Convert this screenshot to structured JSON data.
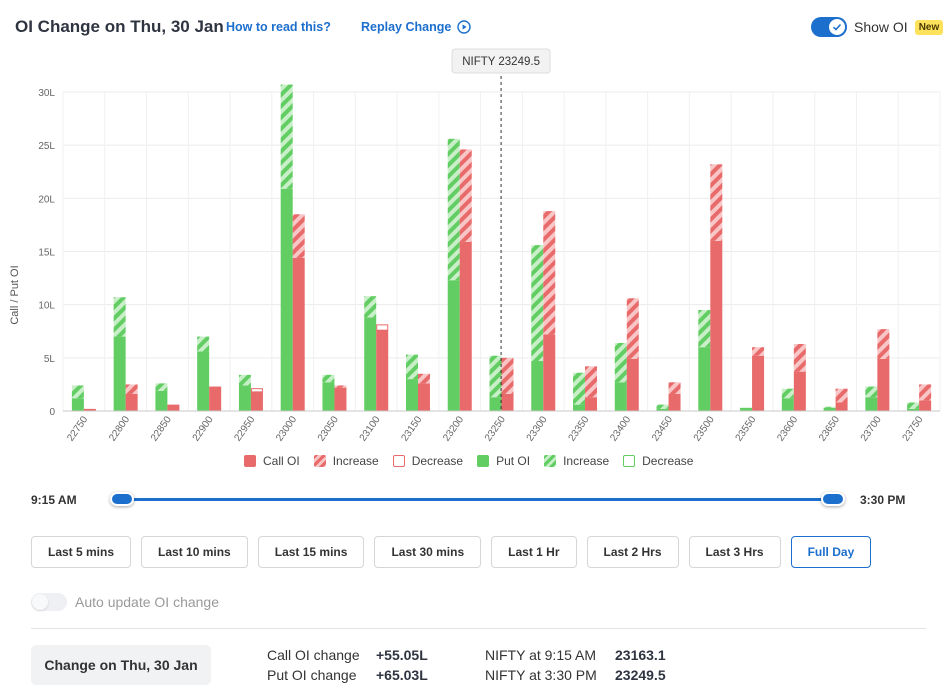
{
  "header": {
    "title": "OI Change on Thu, 30 Jan",
    "how_to_read": "How to read this?",
    "replay": "Replay Change",
    "show_oi_label": "Show OI",
    "new_badge": "New"
  },
  "chart_data": {
    "type": "bar",
    "ylabel": "Call / Put OI",
    "ylim": [
      0,
      30
    ],
    "yticks": [
      "0",
      "5L",
      "10L",
      "15L",
      "20L",
      "25L",
      "30L"
    ],
    "spot_label": "NIFTY 23249.5",
    "spot_value": 23249.5,
    "categories": [
      "22750",
      "22800",
      "22850",
      "22900",
      "22950",
      "23000",
      "23050",
      "23100",
      "23150",
      "23200",
      "23250",
      "23300",
      "23350",
      "23400",
      "23450",
      "23500",
      "23550",
      "23600",
      "23650",
      "23700",
      "23750"
    ],
    "series": [
      {
        "name": "Put OI",
        "color": "#62cd62",
        "base": [
          1.2,
          7.0,
          1.9,
          5.6,
          2.4,
          20.9,
          2.7,
          8.8,
          3.0,
          12.3,
          1.3,
          4.7,
          0.6,
          2.7,
          0.2,
          6.0,
          0.3,
          1.2,
          0.3,
          1.3,
          0.2
        ],
        "increase": [
          1.2,
          3.7,
          0.7,
          1.4,
          1.0,
          9.8,
          0.7,
          2.0,
          2.3,
          13.3,
          3.9,
          10.9,
          3.0,
          3.7,
          0.4,
          3.5,
          0.0,
          0.9,
          0.1,
          1.0,
          0.6
        ],
        "decrease": [
          0,
          0,
          0,
          0,
          0,
          0,
          0,
          0,
          0,
          0,
          0,
          0,
          0,
          0,
          0,
          0,
          0,
          0,
          0,
          0,
          0
        ]
      },
      {
        "name": "Call OI",
        "color": "#e86a6a",
        "base": [
          0.2,
          1.6,
          0.6,
          2.3,
          1.8,
          14.4,
          2.2,
          7.6,
          2.6,
          15.9,
          1.6,
          7.2,
          1.3,
          4.9,
          1.6,
          16.0,
          5.2,
          3.7,
          0.8,
          4.9,
          1.0
        ],
        "increase": [
          0.0,
          0.9,
          0.0,
          0.0,
          0.0,
          4.1,
          0.2,
          0.0,
          0.9,
          8.7,
          3.4,
          11.6,
          2.9,
          5.7,
          1.1,
          7.2,
          0.8,
          2.6,
          1.3,
          2.8,
          1.5
        ],
        "decrease": [
          0,
          0,
          0,
          0,
          0.3,
          0,
          0,
          0.5,
          0,
          0,
          0,
          0,
          0,
          0,
          0,
          0,
          0,
          0,
          0,
          0,
          0
        ]
      }
    ],
    "legend": [
      "Call OI",
      "Increase",
      "Decrease",
      "Put OI",
      "Increase",
      "Decrease"
    ],
    "grid": true
  },
  "slider": {
    "start": "9:15 AM",
    "end": "3:30 PM"
  },
  "ranges": [
    "Last 5 mins",
    "Last 10 mins",
    "Last 15 mins",
    "Last 30 mins",
    "Last 1 Hr",
    "Last 2 Hrs",
    "Last 3 Hrs",
    "Full Day"
  ],
  "active_range": "Full Day",
  "auto_update_label": "Auto update OI change",
  "summary": {
    "change_button": "Change on Thu, 30 Jan",
    "call_label": "Call OI change",
    "call_value": "+55.05L",
    "put_label": "Put OI change",
    "put_value": "+65.03L",
    "nifty_start_label": "NIFTY at 9:15 AM",
    "nifty_start_value": "23163.1",
    "nifty_end_label": "NIFTY at 3:30 PM",
    "nifty_end_value": "23249.5"
  },
  "colors": {
    "accent": "#1c6fcd",
    "call": "#e86a6a",
    "call_light": "#f8c6c6",
    "put": "#62cd62",
    "put_light": "#c9efc9"
  }
}
